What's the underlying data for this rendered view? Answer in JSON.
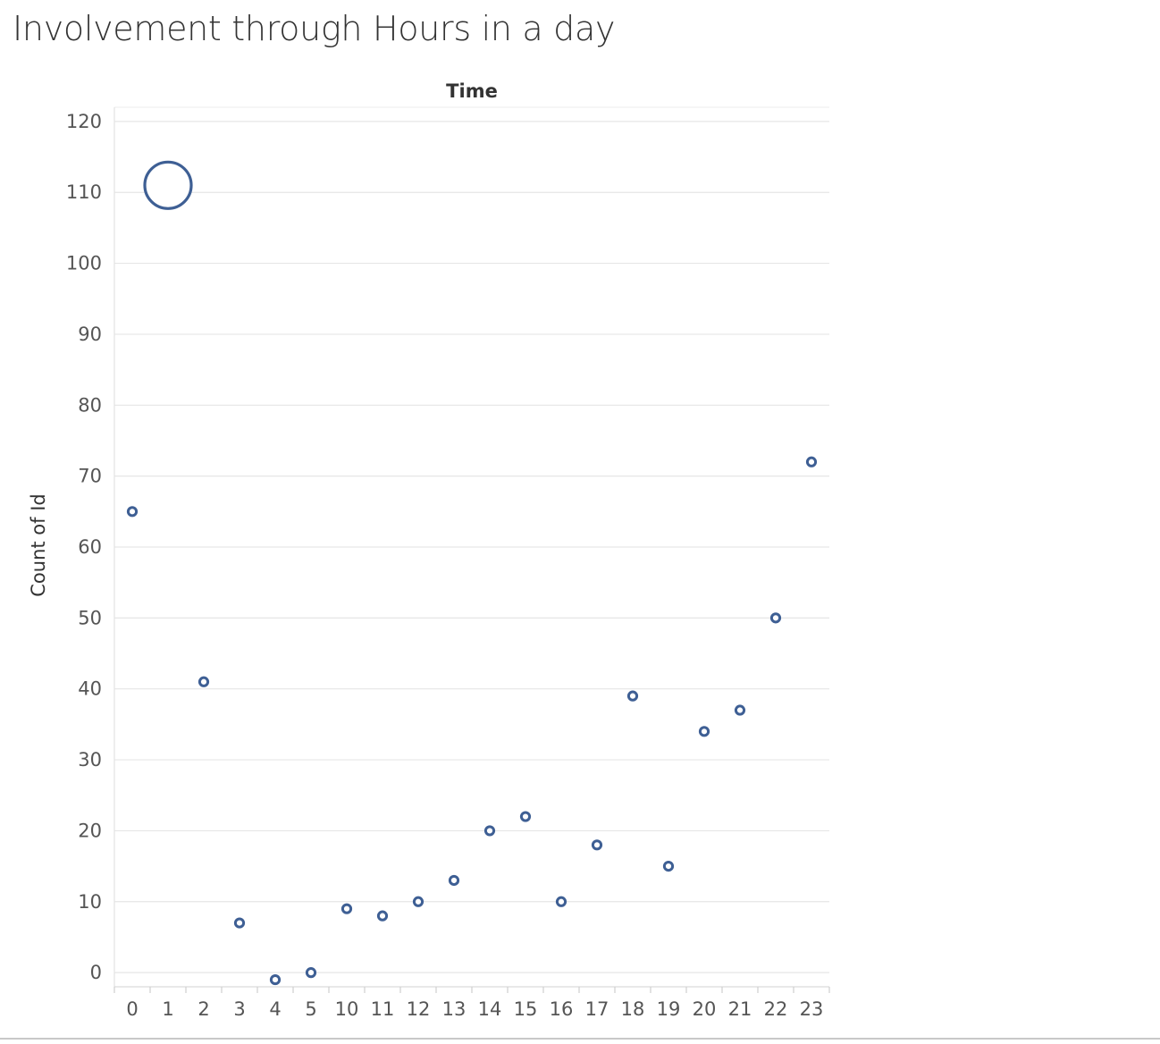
{
  "page_title": "Involvement through Hours in a day",
  "chart_data": {
    "type": "scatter",
    "title": "Involvement through Hours in a day",
    "xlabel": "Time",
    "ylabel": "Count of Id",
    "categories": [
      "0",
      "1",
      "2",
      "3",
      "4",
      "5",
      "10",
      "11",
      "12",
      "13",
      "14",
      "15",
      "16",
      "17",
      "18",
      "19",
      "20",
      "21",
      "22",
      "23"
    ],
    "values": [
      65,
      111,
      41,
      7,
      -1,
      0,
      9,
      8,
      10,
      13,
      20,
      22,
      10,
      18,
      39,
      15,
      34,
      37,
      50,
      72
    ],
    "highlighted_category": "1",
    "y_ticks": [
      0,
      10,
      20,
      30,
      40,
      50,
      60,
      70,
      80,
      90,
      100,
      110,
      120
    ],
    "ylim": [
      -2,
      122
    ],
    "grid": true,
    "x_axis_position": "top",
    "marker_color": "#3e5f94"
  }
}
